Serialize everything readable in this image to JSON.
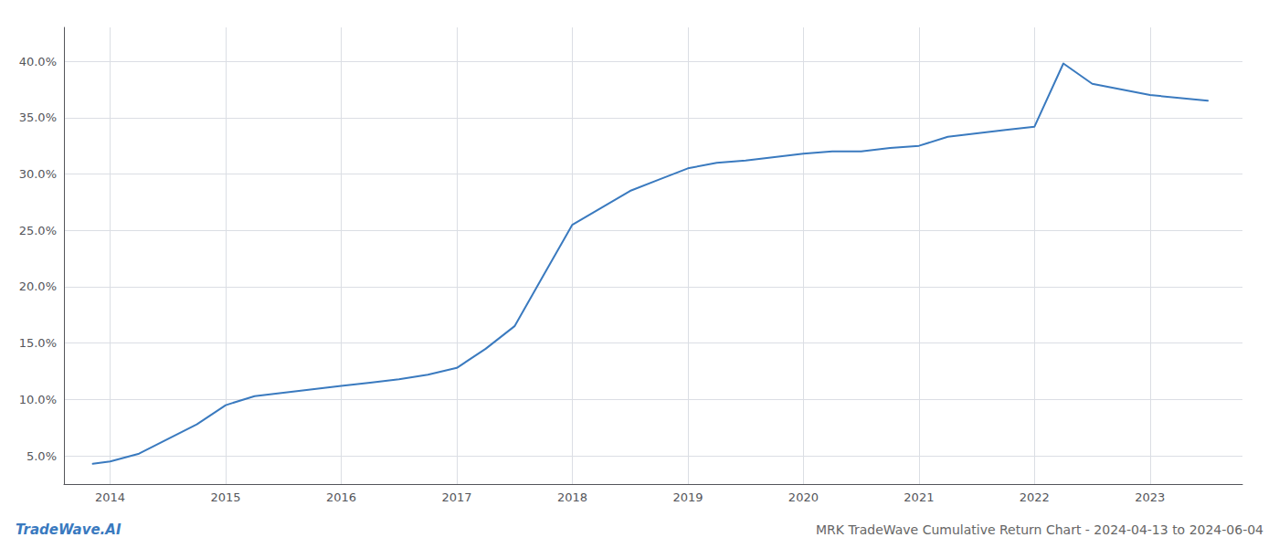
{
  "chart_data": {
    "type": "line",
    "title": "MRK TradeWave Cumulative Return Chart - 2024-04-13 to 2024-06-04",
    "annotations": [
      "TradeWave.AI"
    ],
    "x": [
      2013.85,
      2014.0,
      2014.25,
      2014.5,
      2014.75,
      2015.0,
      2015.25,
      2015.5,
      2015.75,
      2016.0,
      2016.25,
      2016.5,
      2016.75,
      2017.0,
      2017.25,
      2017.5,
      2017.75,
      2018.0,
      2018.25,
      2018.5,
      2018.75,
      2019.0,
      2019.25,
      2019.5,
      2019.75,
      2020.0,
      2020.25,
      2020.5,
      2020.75,
      2021.0,
      2021.25,
      2021.5,
      2021.75,
      2022.0,
      2022.25,
      2022.5,
      2023.0,
      2023.5
    ],
    "values": [
      4.3,
      4.5,
      5.2,
      6.5,
      7.8,
      9.5,
      10.3,
      10.6,
      10.9,
      11.2,
      11.5,
      11.8,
      12.2,
      12.8,
      14.5,
      16.5,
      21.0,
      25.5,
      27.0,
      28.5,
      29.5,
      30.5,
      31.0,
      31.2,
      31.5,
      31.8,
      32.0,
      32.0,
      32.3,
      32.5,
      33.3,
      33.6,
      33.9,
      34.2,
      39.8,
      38.0,
      37.0,
      36.5
    ],
    "color": "#3a7abf",
    "xlim": [
      2013.6,
      2023.8
    ],
    "ylim": [
      2.5,
      43.0
    ],
    "xticks": [
      2014,
      2015,
      2016,
      2017,
      2018,
      2019,
      2020,
      2021,
      2022,
      2023
    ],
    "yticks": [
      {
        "value": 5.0,
        "label": "5.0%"
      },
      {
        "value": 10.0,
        "label": "10.0%"
      },
      {
        "value": 15.0,
        "label": "15.0%"
      },
      {
        "value": 20.0,
        "label": "20.0%"
      },
      {
        "value": 25.0,
        "label": "25.0%"
      },
      {
        "value": 30.0,
        "label": "30.0%"
      },
      {
        "value": 35.0,
        "label": "35.0%"
      },
      {
        "value": 40.0,
        "label": "40.0%"
      }
    ],
    "grid": true
  }
}
